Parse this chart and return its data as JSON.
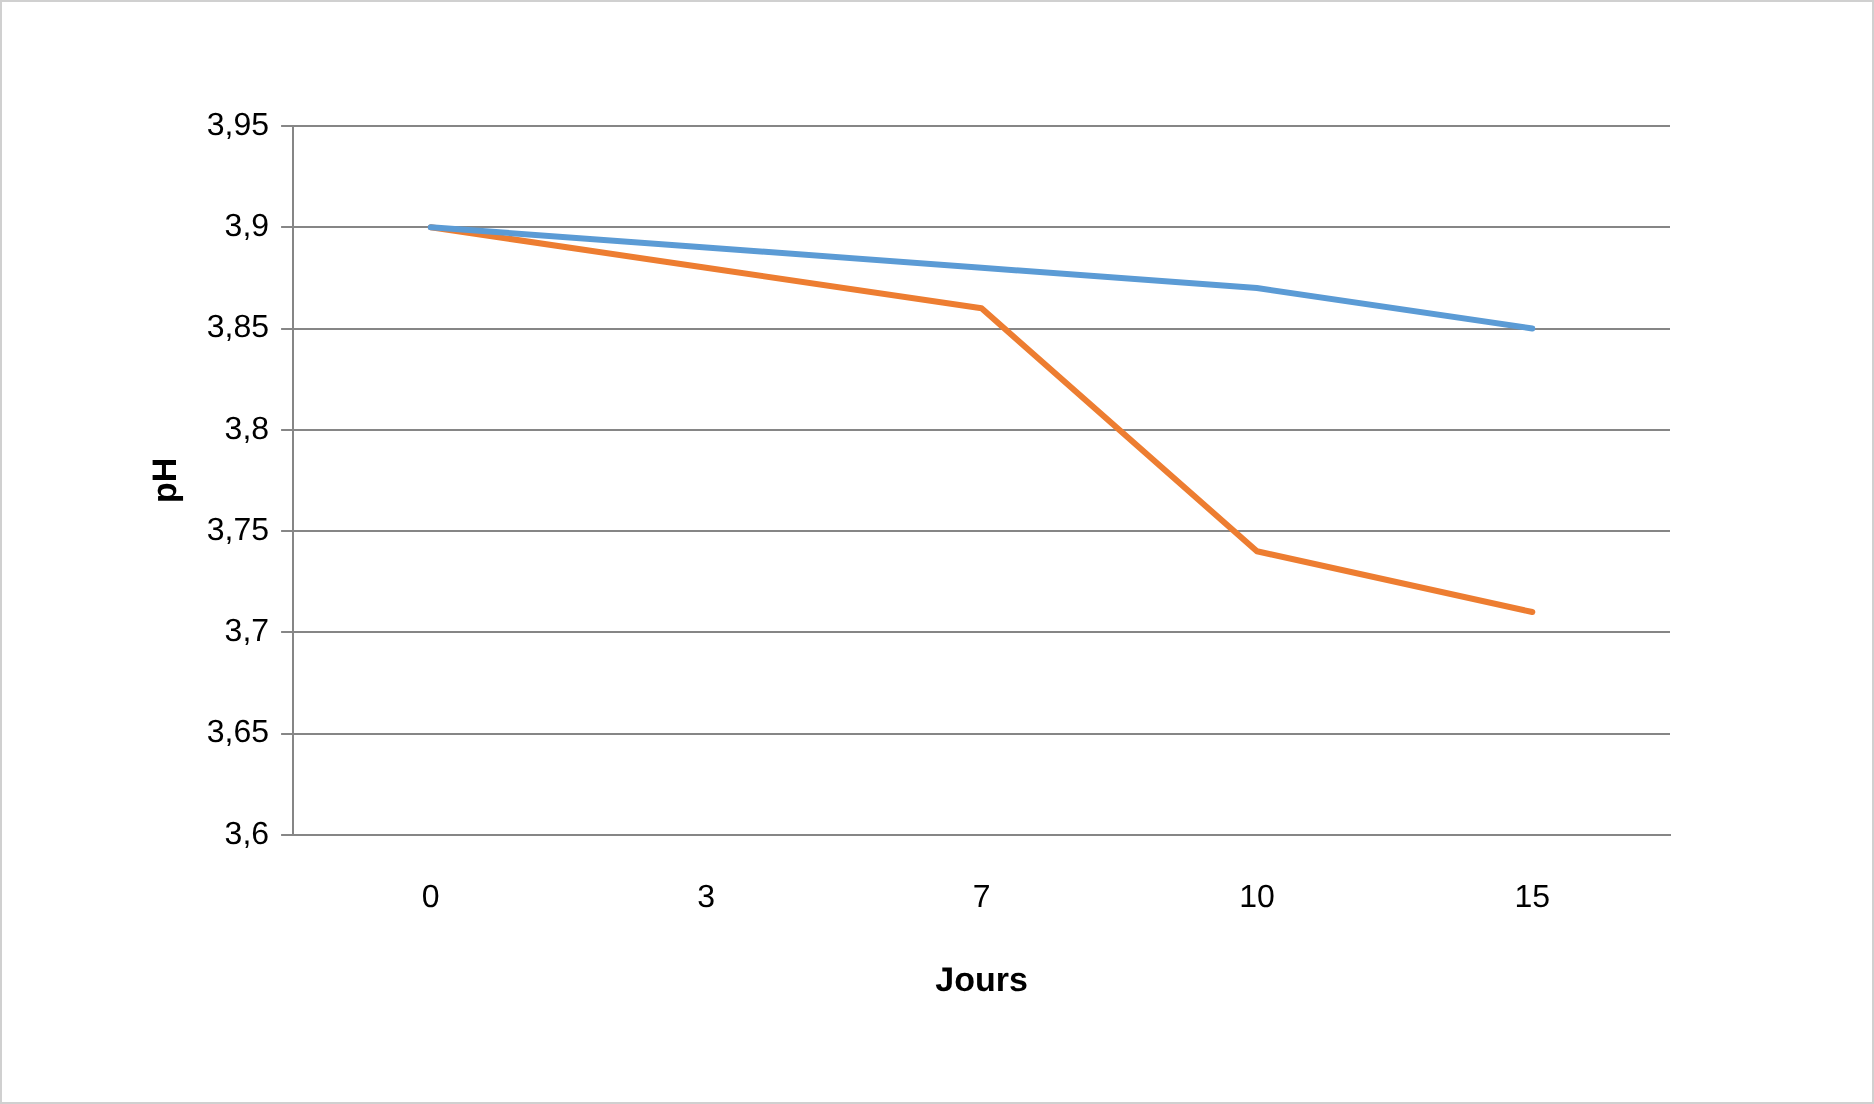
{
  "chart_data": {
    "type": "line",
    "xlabel": "Jours",
    "ylabel": "pH",
    "categories": [
      "0",
      "3",
      "7",
      "10",
      "15"
    ],
    "series": [
      {
        "color": "#5b9bd5",
        "values": [
          3.9,
          3.89,
          3.88,
          3.87,
          3.85
        ]
      },
      {
        "color": "#ed7d31",
        "values": [
          3.9,
          3.88,
          3.86,
          3.74,
          3.71
        ]
      }
    ],
    "ylim": [
      3.6,
      3.95
    ],
    "yticks": [
      {
        "value": 3.6,
        "label": "3,6"
      },
      {
        "value": 3.65,
        "label": "3,65"
      },
      {
        "value": 3.7,
        "label": "3,7"
      },
      {
        "value": 3.75,
        "label": "3,75"
      },
      {
        "value": 3.8,
        "label": "3,8"
      },
      {
        "value": 3.85,
        "label": "3,85"
      },
      {
        "value": 3.9,
        "label": "3,9"
      },
      {
        "value": 3.95,
        "label": "3,95"
      }
    ],
    "grid": "y",
    "legend": false,
    "marker": "none",
    "line_style": "solid"
  }
}
